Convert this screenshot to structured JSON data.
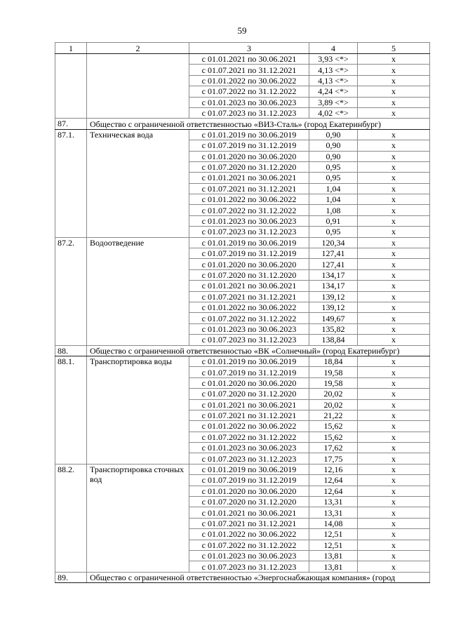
{
  "page_number": "59",
  "table": {
    "column_headers": [
      "1",
      "2",
      "3",
      "4",
      "5"
    ],
    "sections": [
      {
        "kind": "tariff",
        "num": "",
        "service": "",
        "rows": [
          {
            "period": "с 01.01.2021 по 30.06.2021",
            "value": "3,93 <*>",
            "mark": "х"
          },
          {
            "period": "с 01.07.2021 по 31.12.2021",
            "value": "4,13 <*>",
            "mark": "х"
          },
          {
            "period": "с 01.01.2022 по 30.06.2022",
            "value": "4,13 <*>",
            "mark": "х"
          },
          {
            "period": "с 01.07.2022 по 31.12.2022",
            "value": "4,24 <*>",
            "mark": "х"
          },
          {
            "period": "с 01.01.2023 по 30.06.2023",
            "value": "3,89 <*>",
            "mark": "х"
          },
          {
            "period": "с 01.07.2023 по 31.12.2023",
            "value": "4,02 <*>",
            "mark": "х"
          }
        ]
      },
      {
        "kind": "org",
        "num": "87.",
        "title": "Общество с ограниченной ответственностью «ВИЗ-Сталь» (город Екатеринбург)"
      },
      {
        "kind": "tariff",
        "num": "87.1.",
        "service": "Техническая вода",
        "rows": [
          {
            "period": "с 01.01.2019 по 30.06.2019",
            "value": "0,90",
            "mark": "х"
          },
          {
            "period": "с 01.07.2019 по 31.12.2019",
            "value": "0,90",
            "mark": "х"
          },
          {
            "period": "с 01.01.2020 по 30.06.2020",
            "value": "0,90",
            "mark": "х"
          },
          {
            "period": "с 01.07.2020 по 31.12.2020",
            "value": "0,95",
            "mark": "х"
          },
          {
            "period": "с 01.01.2021 по 30.06.2021",
            "value": "0,95",
            "mark": "х"
          },
          {
            "period": "с 01.07.2021 по 31.12.2021",
            "value": "1,04",
            "mark": "х"
          },
          {
            "period": "с 01.01.2022 по 30.06.2022",
            "value": "1,04",
            "mark": "х"
          },
          {
            "period": "с 01.07.2022 по 31.12.2022",
            "value": "1,08",
            "mark": "х"
          },
          {
            "period": "с 01.01.2023 по 30.06.2023",
            "value": "0,91",
            "mark": "х"
          },
          {
            "period": "с 01.07.2023 по 31.12.2023",
            "value": "0,95",
            "mark": "х"
          }
        ]
      },
      {
        "kind": "tariff",
        "num": "87.2.",
        "service": "Водоотведение",
        "rows": [
          {
            "period": "с 01.01.2019 по 30.06.2019",
            "value": "120,34",
            "mark": "х"
          },
          {
            "period": "с 01.07.2019 по 31.12.2019",
            "value": "127,41",
            "mark": "х"
          },
          {
            "period": "с 01.01.2020 по 30.06.2020",
            "value": "127,41",
            "mark": "х"
          },
          {
            "period": "с 01.07.2020 по 31.12.2020",
            "value": "134,17",
            "mark": "х"
          },
          {
            "period": "с 01.01.2021 по 30.06.2021",
            "value": "134,17",
            "mark": "х"
          },
          {
            "period": "с 01.07.2021 по 31.12.2021",
            "value": "139,12",
            "mark": "х"
          },
          {
            "period": "с 01.01.2022 по 30.06.2022",
            "value": "139,12",
            "mark": "х"
          },
          {
            "period": "с 01.07.2022 по 31.12.2022",
            "value": "149,67",
            "mark": "х"
          },
          {
            "period": "с 01.01.2023 по 30.06.2023",
            "value": "135,82",
            "mark": "х"
          },
          {
            "period": "с 01.07.2023 по 31.12.2023",
            "value": "138,84",
            "mark": "х"
          }
        ]
      },
      {
        "kind": "org",
        "num": "88.",
        "title": "Общество с ограниченной ответственностью «ВК «Солнечный» (город Екатеринбург)"
      },
      {
        "kind": "tariff",
        "num": "88.1.",
        "service": "Транспортировка воды",
        "rows": [
          {
            "period": "с 01.01.2019 по 30.06.2019",
            "value": "18,84",
            "mark": "х"
          },
          {
            "period": "с 01.07.2019 по 31.12.2019",
            "value": "19,58",
            "mark": "х"
          },
          {
            "period": "с 01.01.2020 по 30.06.2020",
            "value": "19,58",
            "mark": "х"
          },
          {
            "period": "с 01.07.2020 по 31.12.2020",
            "value": "20,02",
            "mark": "х"
          },
          {
            "period": "с 01.01.2021 по 30.06.2021",
            "value": "20,02",
            "mark": "х"
          },
          {
            "period": "с 01.07.2021 по 31.12.2021",
            "value": "21,22",
            "mark": "х"
          },
          {
            "period": "с 01.01.2022 по 30.06.2022",
            "value": "15,62",
            "mark": "х"
          },
          {
            "period": "с 01.07.2022 по 31.12.2022",
            "value": "15,62",
            "mark": "х"
          },
          {
            "period": "с 01.01.2023 по 30.06.2023",
            "value": "17,62",
            "mark": "х"
          },
          {
            "period": "с 01.07.2023 по 31.12.2023",
            "value": "17,75",
            "mark": "х"
          }
        ]
      },
      {
        "kind": "tariff",
        "num": "88.2.",
        "service": "Транспортировка сточных вод",
        "rows": [
          {
            "period": "с 01.01.2019 по 30.06.2019",
            "value": "12,16",
            "mark": "х"
          },
          {
            "period": "с 01.07.2019 по 31.12.2019",
            "value": "12,64",
            "mark": "х"
          },
          {
            "period": "с 01.01.2020 по 30.06.2020",
            "value": "12,64",
            "mark": "х"
          },
          {
            "period": "с 01.07.2020 по 31.12.2020",
            "value": "13,31",
            "mark": "х"
          },
          {
            "period": "с 01.01.2021 по 30.06.2021",
            "value": "13,31",
            "mark": "х"
          },
          {
            "period": "с 01.07.2021 по 31.12.2021",
            "value": "14,08",
            "mark": "х"
          },
          {
            "period": "с 01.01.2022 по 30.06.2022",
            "value": "12,51",
            "mark": "х"
          },
          {
            "period": "с 01.07.2022 по 31.12.2022",
            "value": "12,51",
            "mark": "х"
          },
          {
            "period": "с 01.01.2023 по 30.06.2023",
            "value": "13,81",
            "mark": "х"
          },
          {
            "period": "с 01.07.2023 по 31.12.2023",
            "value": "13,81",
            "mark": "х"
          }
        ]
      },
      {
        "kind": "org",
        "num": "89.",
        "title": "Общество с ограниченной ответственностью «Энергоснабжающая компания» (город"
      }
    ]
  }
}
